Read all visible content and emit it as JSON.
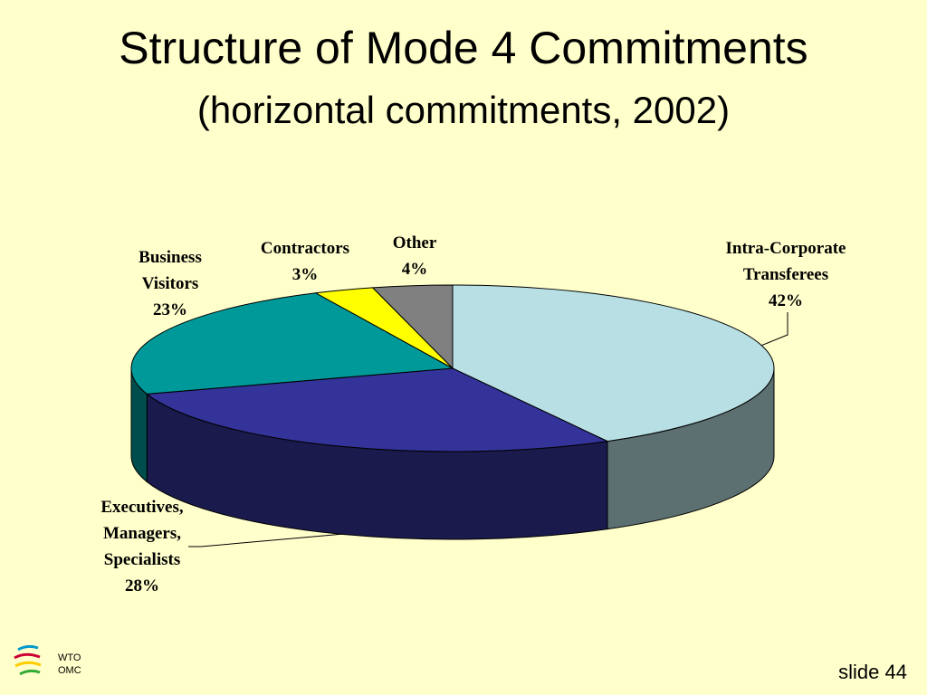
{
  "title": "Structure of Mode 4 Commitments",
  "subtitle": "(horizontal commitments, 2002)",
  "chart_data": {
    "type": "pie",
    "categories": [
      "Intra-Corporate Transferees",
      "Executives, Managers, Specialists",
      "Business Visitors",
      "Contractors",
      "Other"
    ],
    "values": [
      42,
      28,
      23,
      3,
      4
    ],
    "value_labels": [
      "42%",
      "28%",
      "23%",
      "3%",
      "4%"
    ],
    "colors": [
      "#b8dfe4",
      "#333399",
      "#009999",
      "#ffff00",
      "#808080"
    ]
  },
  "footer": {
    "logo": [
      "WTO",
      "OMC"
    ],
    "slide": "slide 44"
  }
}
